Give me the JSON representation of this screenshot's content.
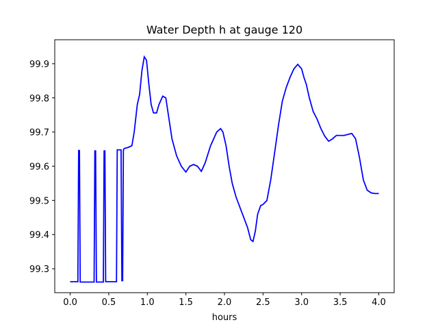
{
  "chart_data": {
    "type": "line",
    "title": "Water Depth h at gauge 120",
    "xlabel": "hours",
    "ylabel": "",
    "xlim": [
      -0.2,
      4.2
    ],
    "ylim": [
      99.23,
      99.97
    ],
    "xticks": [
      0.0,
      0.5,
      1.0,
      1.5,
      2.0,
      2.5,
      3.0,
      3.5,
      4.0
    ],
    "xtick_labels": [
      "0.0",
      "0.5",
      "1.0",
      "1.5",
      "2.0",
      "2.5",
      "3.0",
      "3.5",
      "4.0"
    ],
    "yticks": [
      99.3,
      99.4,
      99.5,
      99.6,
      99.7,
      99.8,
      99.9
    ],
    "ytick_labels": [
      "99.3",
      "99.4",
      "99.5",
      "99.6",
      "99.7",
      "99.8",
      "99.9"
    ],
    "grid": false,
    "series": [
      {
        "color": "#0000ff",
        "x": [
          0.0,
          0.1,
          0.11,
          0.12,
          0.13,
          0.31,
          0.32,
          0.33,
          0.34,
          0.43,
          0.44,
          0.45,
          0.46,
          0.6,
          0.61,
          0.66,
          0.67,
          0.68,
          0.69,
          0.7,
          0.75,
          0.8,
          0.83,
          0.87,
          0.9,
          0.93,
          0.96,
          0.99,
          1.02,
          1.05,
          1.08,
          1.12,
          1.15,
          1.2,
          1.24,
          1.28,
          1.32,
          1.38,
          1.44,
          1.5,
          1.55,
          1.6,
          1.65,
          1.7,
          1.75,
          1.82,
          1.9,
          1.95,
          1.98,
          2.02,
          2.06,
          2.1,
          2.15,
          2.2,
          2.25,
          2.3,
          2.34,
          2.37,
          2.4,
          2.43,
          2.47,
          2.5,
          2.55,
          2.6,
          2.65,
          2.7,
          2.75,
          2.8,
          2.85,
          2.9,
          2.95,
          3.0,
          3.03,
          3.06,
          3.1,
          3.15,
          3.2,
          3.25,
          3.3,
          3.35,
          3.4,
          3.45,
          3.5,
          3.55,
          3.6,
          3.65,
          3.7,
          3.75,
          3.8,
          3.85,
          3.9,
          3.95,
          4.0
        ],
        "y": [
          99.262,
          99.262,
          99.646,
          99.646,
          99.261,
          99.261,
          99.645,
          99.645,
          99.261,
          99.261,
          99.645,
          99.645,
          99.262,
          99.262,
          99.648,
          99.648,
          99.265,
          99.265,
          99.648,
          99.652,
          99.655,
          99.66,
          99.7,
          99.78,
          99.81,
          99.88,
          99.92,
          99.91,
          99.84,
          99.78,
          99.756,
          99.756,
          99.78,
          99.805,
          99.8,
          99.74,
          99.68,
          99.63,
          99.6,
          99.583,
          99.6,
          99.605,
          99.6,
          99.585,
          99.61,
          99.66,
          99.7,
          99.71,
          99.7,
          99.66,
          99.6,
          99.55,
          99.51,
          99.48,
          99.45,
          99.42,
          99.385,
          99.38,
          99.41,
          99.46,
          99.485,
          99.488,
          99.5,
          99.56,
          99.64,
          99.72,
          99.79,
          99.83,
          99.86,
          99.885,
          99.898,
          99.885,
          99.86,
          99.84,
          99.8,
          99.76,
          99.738,
          99.71,
          99.688,
          99.673,
          99.68,
          99.69,
          99.69,
          99.69,
          99.693,
          99.696,
          99.68,
          99.625,
          99.56,
          99.53,
          99.522,
          99.52,
          99.52
        ]
      }
    ]
  }
}
